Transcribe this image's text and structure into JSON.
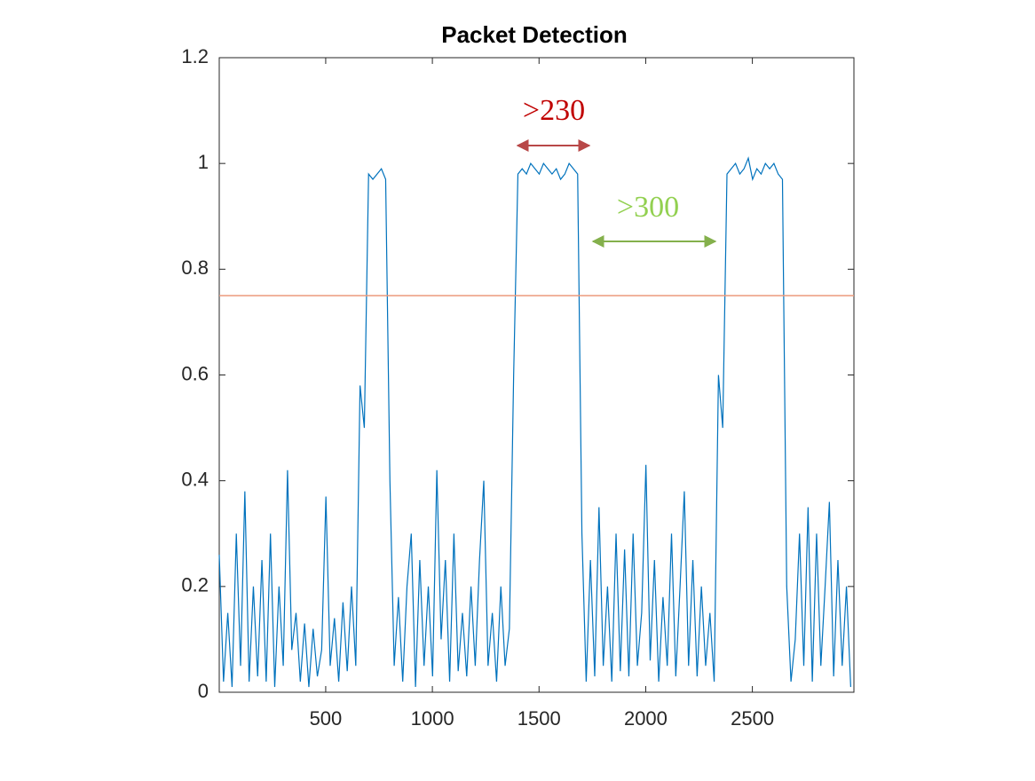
{
  "chart_data": {
    "type": "line",
    "title": "Packet Detection",
    "x": [
      1,
      21,
      41,
      61,
      81,
      101,
      121,
      141,
      161,
      181,
      201,
      221,
      241,
      261,
      281,
      301,
      321,
      341,
      361,
      381,
      401,
      421,
      441,
      461,
      481,
      501,
      521,
      541,
      561,
      581,
      601,
      621,
      641,
      661,
      681,
      701,
      721,
      741,
      761,
      781,
      801,
      821,
      841,
      861,
      881,
      901,
      921,
      941,
      961,
      981,
      1001,
      1021,
      1041,
      1061,
      1081,
      1101,
      1121,
      1141,
      1161,
      1181,
      1201,
      1221,
      1241,
      1261,
      1281,
      1301,
      1321,
      1341,
      1361,
      1381,
      1401,
      1421,
      1441,
      1461,
      1481,
      1501,
      1521,
      1541,
      1561,
      1581,
      1601,
      1621,
      1641,
      1661,
      1681,
      1701,
      1721,
      1741,
      1761,
      1781,
      1801,
      1821,
      1841,
      1861,
      1881,
      1901,
      1921,
      1941,
      1961,
      1981,
      2001,
      2021,
      2041,
      2061,
      2081,
      2101,
      2121,
      2141,
      2161,
      2181,
      2201,
      2221,
      2241,
      2261,
      2281,
      2301,
      2321,
      2341,
      2361,
      2381,
      2401,
      2421,
      2441,
      2461,
      2481,
      2501,
      2521,
      2541,
      2561,
      2581,
      2601,
      2621,
      2641,
      2661,
      2681,
      2701,
      2721,
      2741,
      2761,
      2781,
      2801,
      2821,
      2841,
      2861,
      2881,
      2901,
      2921,
      2941,
      2961
    ],
    "series": [
      {
        "color": "#0072bd",
        "values": [
          0.26,
          0.02,
          0.15,
          0.01,
          0.3,
          0.05,
          0.38,
          0.02,
          0.2,
          0.03,
          0.25,
          0.02,
          0.3,
          0.01,
          0.2,
          0.05,
          0.42,
          0.08,
          0.15,
          0.02,
          0.13,
          0.01,
          0.12,
          0.03,
          0.08,
          0.37,
          0.05,
          0.14,
          0.02,
          0.17,
          0.04,
          0.2,
          0.05,
          0.58,
          0.5,
          0.98,
          0.97,
          0.98,
          0.99,
          0.97,
          0.4,
          0.05,
          0.18,
          0.02,
          0.2,
          0.3,
          0.01,
          0.25,
          0.05,
          0.2,
          0.03,
          0.42,
          0.1,
          0.25,
          0.02,
          0.3,
          0.04,
          0.15,
          0.03,
          0.2,
          0.05,
          0.25,
          0.4,
          0.05,
          0.15,
          0.02,
          0.2,
          0.05,
          0.12,
          0.6,
          0.98,
          0.99,
          0.98,
          1.0,
          0.99,
          0.98,
          1.0,
          0.99,
          0.98,
          0.99,
          0.97,
          0.98,
          1.0,
          0.99,
          0.98,
          0.3,
          0.02,
          0.25,
          0.03,
          0.35,
          0.05,
          0.2,
          0.02,
          0.3,
          0.04,
          0.27,
          0.03,
          0.3,
          0.05,
          0.15,
          0.43,
          0.06,
          0.25,
          0.02,
          0.18,
          0.05,
          0.3,
          0.03,
          0.2,
          0.38,
          0.05,
          0.25,
          0.03,
          0.2,
          0.05,
          0.15,
          0.02,
          0.6,
          0.5,
          0.98,
          0.99,
          1.0,
          0.98,
          0.99,
          1.01,
          0.97,
          0.99,
          0.98,
          1.0,
          0.99,
          1.0,
          0.98,
          0.97,
          0.2,
          0.02,
          0.1,
          0.3,
          0.05,
          0.35,
          0.02,
          0.3,
          0.05,
          0.2,
          0.36,
          0.03,
          0.25,
          0.05,
          0.2,
          0.01
        ]
      }
    ],
    "threshold": {
      "value": 0.75,
      "color": "#ec9a7c"
    },
    "annotations": [
      {
        "text": ">230",
        "color": "#c00000",
        "arrow_color": "#b84848"
      },
      {
        "text": ">300",
        "color": "#92d050",
        "arrow_color": "#84b04c"
      }
    ],
    "xlim": [
      1,
      2976
    ],
    "xticks": [
      500,
      1000,
      1500,
      2000,
      2500
    ],
    "ylim": [
      0,
      1.2
    ],
    "yticks": [
      0,
      0.2,
      0.4,
      0.6,
      0.8,
      1,
      1.2
    ]
  }
}
